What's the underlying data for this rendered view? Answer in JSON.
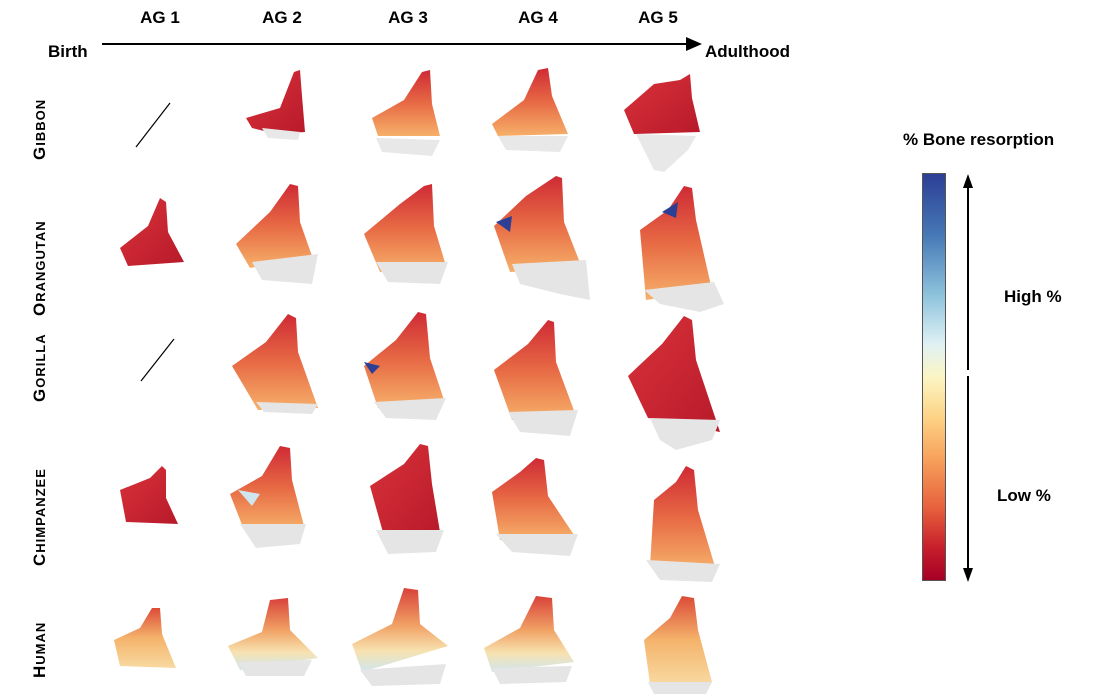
{
  "header": {
    "age_groups": [
      "AG 1",
      "AG 2",
      "AG 3",
      "AG 4",
      "AG 5"
    ],
    "start_label": "Birth",
    "end_label": "Adulthood"
  },
  "species": [
    {
      "cap": "G",
      "rest": "IBBON"
    },
    {
      "cap": "O",
      "rest": "RANGUTAN"
    },
    {
      "cap": "G",
      "rest": "ORILLA"
    },
    {
      "cap": "C",
      "rest": "HIMPANZEE"
    },
    {
      "cap": "H",
      "rest": "UMAN"
    }
  ],
  "legend": {
    "title": "% Bone resorption",
    "high_label": "High %",
    "low_label": "Low %",
    "colors": [
      "#2c3f95",
      "#8fc4dd",
      "#fbf5c4",
      "#f7a25c",
      "#c71f2b",
      "#a50026"
    ]
  },
  "missing_cells": [
    {
      "species": "Gibbon",
      "age_group": "AG 1"
    },
    {
      "species": "Gorilla",
      "age_group": "AG 1"
    }
  ]
}
